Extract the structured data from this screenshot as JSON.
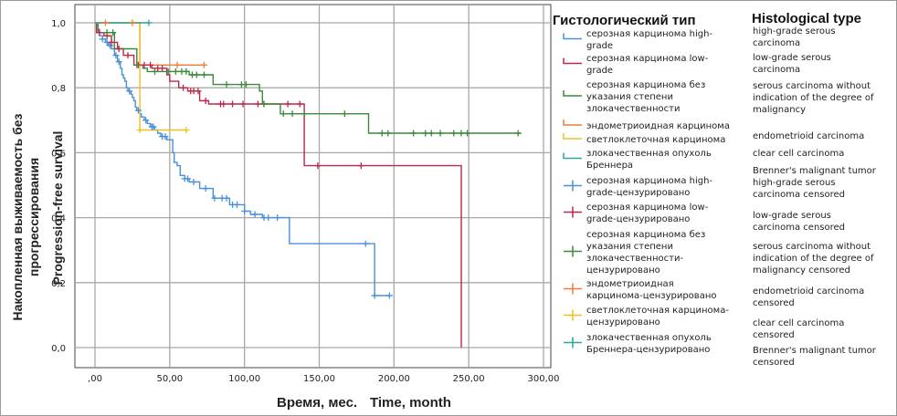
{
  "chart_data": {
    "type": "line",
    "subtype": "kaplan-meier",
    "ylabel_ru_line1": "Накопленная выживаемость без",
    "ylabel_ru_line2": "прогрессирования",
    "ylabel_en": "Progression-free survival",
    "xlabel_ru": "Время, мес.",
    "xlabel_en": "Time, month",
    "xlim": [
      0,
      300
    ],
    "ylim": [
      0,
      1
    ],
    "x_ticks": [
      0,
      50,
      100,
      150,
      200,
      250,
      300
    ],
    "x_tick_labels": [
      ",00",
      "50,00",
      "100,00",
      "150,00",
      "200,00",
      "250,00",
      "300,00"
    ],
    "y_ticks": [
      0,
      0.2,
      0.4,
      0.6,
      0.8,
      1.0
    ],
    "y_tick_labels": [
      "0,0",
      "0,2",
      "0,4",
      "0,6",
      "0,8",
      "1,0"
    ],
    "grid": true,
    "legend_title_ru": "Гистологический тип",
    "legend_title_en": "Histological type",
    "legend_placement": "right",
    "legend": [
      {
        "kind": "line",
        "color": "#4a90d9",
        "ru": [
          "серозная карцинома high-",
          "grade"
        ],
        "en": [
          "high-grade serous",
          "carcinoma"
        ]
      },
      {
        "kind": "line",
        "color": "#c0264a",
        "ru": [
          "серозная карцинома low-",
          "grade"
        ],
        "en": [
          "low-grade serous",
          "carcinoma"
        ]
      },
      {
        "kind": "line",
        "color": "#3a8a3a",
        "ru": [
          "серозная карцинома без",
          "указания степени",
          "злокачественности"
        ],
        "en": [
          "serous carcinoma without",
          "indication of the degree of",
          "malignancy"
        ]
      },
      {
        "kind": "line",
        "color": "#f07a3a",
        "ru": [
          "эндометриоидная карцинома"
        ],
        "en": [
          "endometrioid carcinoma"
        ]
      },
      {
        "kind": "line",
        "color": "#f0c020",
        "ru": [
          "светлоклеточная карцинома"
        ],
        "en": [
          "clear cell carcinoma"
        ]
      },
      {
        "kind": "line",
        "color": "#2aa89a",
        "ru": [
          "злокачественная опухоль",
          "Бреннера"
        ],
        "en": [
          "Brenner's malignant tumor"
        ]
      },
      {
        "kind": "censor",
        "color": "#4a90d9",
        "ru": [
          "серозная карцинома high-",
          "grade-цензурировано"
        ],
        "en": [
          "high-grade serous",
          "carcinoma censored"
        ]
      },
      {
        "kind": "censor",
        "color": "#c0264a",
        "ru": [
          "серозная карцинома low-",
          "grade-цензурировано"
        ],
        "en": [
          "low-grade serous",
          "carcinoma censored"
        ]
      },
      {
        "kind": "censor",
        "color": "#3a8a3a",
        "ru": [
          "серозная карцинома без",
          "указания степени",
          "злокачественности-",
          "цензурировано"
        ],
        "en": [
          "serous carcinoma without",
          "indication of the degree of",
          "malignancy censored"
        ]
      },
      {
        "kind": "censor",
        "color": "#f07a3a",
        "ru": [
          "эндометриоидная",
          "карцинома-цензурировано"
        ],
        "en": [
          "endometrioid carcinoma",
          "censored"
        ]
      },
      {
        "kind": "censor",
        "color": "#f0c020",
        "ru": [
          "светлоклеточная карцинома-",
          "цензурировано"
        ],
        "en": [
          "clear cell carcinoma",
          "censored"
        ]
      },
      {
        "kind": "censor",
        "color": "#2aa89a",
        "ru": [
          "злокачественная опухоль",
          "Бреннера-цензурировано"
        ],
        "en": [
          "Brenner's malignant tumor",
          "censored"
        ]
      }
    ],
    "series": [
      {
        "color": "#4a90d9",
        "steps": [
          [
            0,
            1.0
          ],
          [
            2,
            0.98
          ],
          [
            3,
            0.96
          ],
          [
            5,
            0.95
          ],
          [
            7,
            0.94
          ],
          [
            9,
            0.93
          ],
          [
            11,
            0.92
          ],
          [
            13,
            0.9
          ],
          [
            15,
            0.88
          ],
          [
            17,
            0.86
          ],
          [
            18,
            0.84
          ],
          [
            19,
            0.83
          ],
          [
            20,
            0.82
          ],
          [
            21,
            0.8
          ],
          [
            22,
            0.79
          ],
          [
            24,
            0.78
          ],
          [
            25,
            0.77
          ],
          [
            26,
            0.76
          ],
          [
            27,
            0.74
          ],
          [
            28,
            0.73
          ],
          [
            30,
            0.72
          ],
          [
            31,
            0.71
          ],
          [
            33,
            0.7
          ],
          [
            35,
            0.69
          ],
          [
            37,
            0.68
          ],
          [
            40,
            0.67
          ],
          [
            42,
            0.66
          ],
          [
            44,
            0.65
          ],
          [
            48,
            0.64
          ],
          [
            52,
            0.6
          ],
          [
            53,
            0.57
          ],
          [
            55,
            0.56
          ],
          [
            57,
            0.53
          ],
          [
            60,
            0.52
          ],
          [
            63,
            0.51
          ],
          [
            70,
            0.49
          ],
          [
            79,
            0.46
          ],
          [
            90,
            0.44
          ],
          [
            100,
            0.42
          ],
          [
            104,
            0.41
          ],
          [
            112,
            0.4
          ],
          [
            123,
            0.4
          ],
          [
            130,
            0.32
          ],
          [
            186,
            0.32
          ],
          [
            187,
            0.16
          ],
          [
            197,
            0.16
          ]
        ],
        "censored_x": [
          5,
          8,
          10,
          14,
          16,
          23,
          29,
          34,
          38,
          39,
          45,
          47,
          60,
          62,
          66,
          74,
          80,
          85,
          88,
          92,
          95,
          100,
          107,
          113,
          116,
          122,
          181,
          187,
          197
        ]
      },
      {
        "color": "#c0264a",
        "steps": [
          [
            0,
            1.0
          ],
          [
            1,
            0.97
          ],
          [
            6,
            0.96
          ],
          [
            11,
            0.94
          ],
          [
            15,
            0.92
          ],
          [
            19,
            0.9
          ],
          [
            26,
            0.87
          ],
          [
            38,
            0.86
          ],
          [
            48,
            0.84
          ],
          [
            50,
            0.82
          ],
          [
            56,
            0.8
          ],
          [
            62,
            0.79
          ],
          [
            70,
            0.76
          ],
          [
            76,
            0.75
          ],
          [
            140,
            0.75
          ],
          [
            140,
            0.56
          ],
          [
            245,
            0.56
          ],
          [
            245,
            0.0
          ]
        ],
        "censored_x": [
          3,
          8,
          11,
          16,
          22,
          29,
          33,
          37,
          42,
          45,
          59,
          64,
          66,
          69,
          74,
          84,
          86,
          92,
          99,
          109,
          113,
          129,
          137,
          149,
          178
        ]
      },
      {
        "color": "#3a8a3a",
        "steps": [
          [
            0,
            1.0
          ],
          [
            2,
            0.97
          ],
          [
            13,
            0.92
          ],
          [
            28,
            0.87
          ],
          [
            32,
            0.86
          ],
          [
            35,
            0.85
          ],
          [
            63,
            0.84
          ],
          [
            79,
            0.81
          ],
          [
            110,
            0.79
          ],
          [
            112,
            0.75
          ],
          [
            124,
            0.72
          ],
          [
            183,
            0.72
          ],
          [
            183,
            0.66
          ],
          [
            285,
            0.66
          ]
        ],
        "censored_x": [
          8,
          12,
          28,
          40,
          49,
          54,
          58,
          61,
          65,
          68,
          73,
          88,
          98,
          101,
          113,
          126,
          132,
          140,
          167,
          192,
          196,
          213,
          221,
          225,
          231,
          240,
          245,
          249,
          283
        ]
      },
      {
        "color": "#f07a3a",
        "steps": [
          [
            0,
            1.0
          ],
          [
            30,
            1.0
          ],
          [
            30,
            0.87
          ],
          [
            73,
            0.87
          ]
        ],
        "censored_x": [
          7,
          25,
          55,
          73
        ]
      },
      {
        "color": "#f0c020",
        "steps": [
          [
            0,
            1.0
          ],
          [
            30,
            1.0
          ],
          [
            30,
            0.67
          ],
          [
            61,
            0.67
          ]
        ],
        "censored_x": [
          30,
          61
        ]
      },
      {
        "color": "#2aa89a",
        "steps": [
          [
            0,
            1.0
          ],
          [
            36,
            1.0
          ]
        ],
        "censored_x": [
          36
        ]
      }
    ]
  }
}
